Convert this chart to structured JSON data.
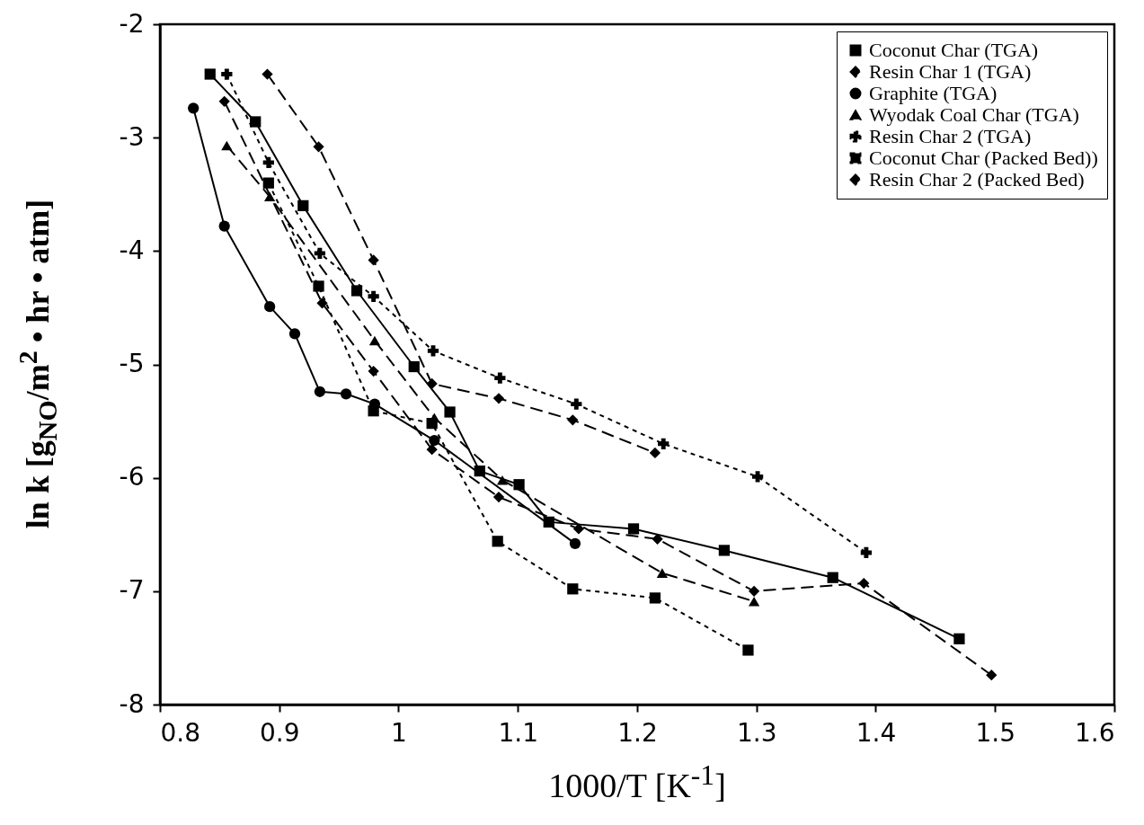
{
  "chart_data": {
    "type": "line",
    "xlabel": "1000/T [K$^{-1}$]",
    "ylabel": "ln k [g$_{NO}$/m$^{2}$ • hr • atm]",
    "xlim": [
      0.8,
      1.6
    ],
    "ylim": [
      -8,
      -2
    ],
    "xticks": [
      0.8,
      0.9,
      1,
      1.1,
      1.2,
      1.3,
      1.4,
      1.5,
      1.6
    ],
    "yticks": [
      -8,
      -7,
      -6,
      -5,
      -4,
      -3,
      -2
    ],
    "grid": false,
    "legend": "top right",
    "series": [
      {
        "name": "Coconut Char (TGA)",
        "color": "#000000",
        "marker": "square",
        "line_style": "solid",
        "x": [
          0.842,
          0.88,
          0.92,
          0.965,
          1.013,
          1.043,
          1.068,
          1.101,
          1.126,
          1.197,
          1.273,
          1.364,
          1.47
        ],
        "values": [
          -2.44,
          -2.86,
          -3.6,
          -4.35,
          -5.02,
          -5.42,
          -5.94,
          -6.06,
          -6.39,
          -6.45,
          -6.64,
          -6.88,
          -7.42
        ]
      },
      {
        "name": "Resin Char 1 (TGA)",
        "color": "#000000",
        "marker": "diamond",
        "line_style": "dashed",
        "x": [
          0.854,
          0.936,
          0.979,
          1.028,
          1.084,
          1.151,
          1.217,
          1.298,
          1.39,
          1.497
        ],
        "values": [
          -2.68,
          -4.46,
          -5.06,
          -5.75,
          -6.17,
          -6.45,
          -6.54,
          -7.0,
          -6.93,
          -7.74
        ]
      },
      {
        "name": "Graphite (TGA)",
        "color": "#000000",
        "marker": "circle",
        "line_style": "solid",
        "x": [
          0.828,
          0.854,
          0.892,
          0.913,
          0.934,
          0.956,
          0.98,
          1.03,
          1.148
        ],
        "values": [
          -2.74,
          -3.78,
          -4.49,
          -4.73,
          -5.24,
          -5.26,
          -5.35,
          -5.67,
          -6.58
        ]
      },
      {
        "name": "Wyodak Coal Char (TGA)",
        "color": "#000000",
        "marker": "triangle",
        "line_style": "dashed",
        "x": [
          0.856,
          0.892,
          0.98,
          1.03,
          1.087,
          1.221,
          1.298
        ],
        "values": [
          -3.07,
          -3.52,
          -4.79,
          -5.47,
          -6.02,
          -6.84,
          -7.09
        ]
      },
      {
        "name": "Resin Char 2 (TGA)",
        "color": "#000000",
        "marker": "cross",
        "line_style": "dotted",
        "x": [
          0.856,
          0.891,
          0.934,
          0.979,
          1.029,
          1.085,
          1.149,
          1.222,
          1.301,
          1.392
        ],
        "values": [
          -2.44,
          -3.22,
          -4.02,
          -4.4,
          -4.88,
          -5.12,
          -5.35,
          -5.7,
          -5.99,
          -6.66
        ]
      },
      {
        "name": "Coconut Char (Packed Bed))",
        "color": "#000000",
        "marker": "square",
        "line_style": "dotted",
        "x": [
          0.891,
          0.933,
          0.979,
          1.028,
          1.083,
          1.146,
          1.215,
          1.293
        ],
        "values": [
          -3.4,
          -4.31,
          -5.41,
          -5.52,
          -6.56,
          -6.98,
          -7.06,
          -7.52
        ]
      },
      {
        "name": "Resin Char 2 (Packed Bed)",
        "color": "#000000",
        "marker": "diamond",
        "line_style": "dashed",
        "x": [
          0.89,
          0.933,
          0.979,
          1.028,
          1.084,
          1.146,
          1.215
        ],
        "values": [
          -2.44,
          -3.08,
          -4.08,
          -5.17,
          -5.3,
          -5.49,
          -5.78
        ]
      }
    ]
  }
}
